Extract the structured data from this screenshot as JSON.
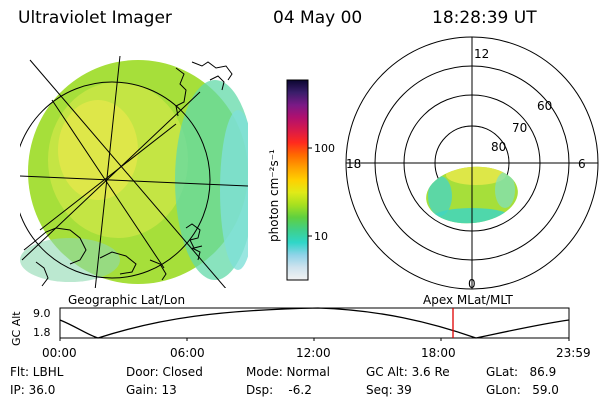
{
  "header": {
    "title": "Ultraviolet Imager",
    "date": "04 May 00",
    "time": "18:28:39 UT"
  },
  "colorbar": {
    "unit_label": "photon cm⁻²s⁻¹",
    "ticks": [
      "100",
      "10"
    ],
    "scale": "log",
    "colors": [
      "#f2f2f2",
      "#cfe3ee",
      "#8fd3e8",
      "#2fd6c8",
      "#3fd08a",
      "#5fd040",
      "#a6e020",
      "#e0ea18",
      "#ffd000",
      "#ffa000",
      "#ff6a00",
      "#ff2a1e",
      "#d81a4a",
      "#b0106e",
      "#7a1a86",
      "#3a1e6a",
      "#0b0630"
    ]
  },
  "left_panel": {
    "label": "Geographic Lat/Lon",
    "image_colors": {
      "green": "#a6df3a",
      "yellow": "#e3e84a",
      "cyan": "#3fd6c0",
      "light_cyan": "#7fe0d8"
    }
  },
  "right_panel": {
    "label": "Apex MLat/MLT",
    "mlt_labels": {
      "top": "12",
      "left": "18",
      "right": "6",
      "bottom": "0"
    },
    "lat_labels": [
      "60",
      "70",
      "80"
    ]
  },
  "alt_plot": {
    "ylabel": "GC Alt",
    "ytick_top": "9.0",
    "ytick_bottom": "1.8",
    "xticks": [
      "00:00",
      "06:00",
      "12:00",
      "18:00",
      "23:59"
    ],
    "marker_color": "#e00000"
  },
  "info": {
    "flt": "Flt: LBHL",
    "ip": "IP: 36.0",
    "door": "Door: Closed",
    "gain": "Gain: 13",
    "mode": "Mode: Normal",
    "dsp": "Dsp:    -6.2",
    "gc_alt": "GC Alt: 3.6 Re",
    "seq": "Seq: 39",
    "glat": "GLat:   86.9",
    "glon": "GLon:   59.0"
  }
}
